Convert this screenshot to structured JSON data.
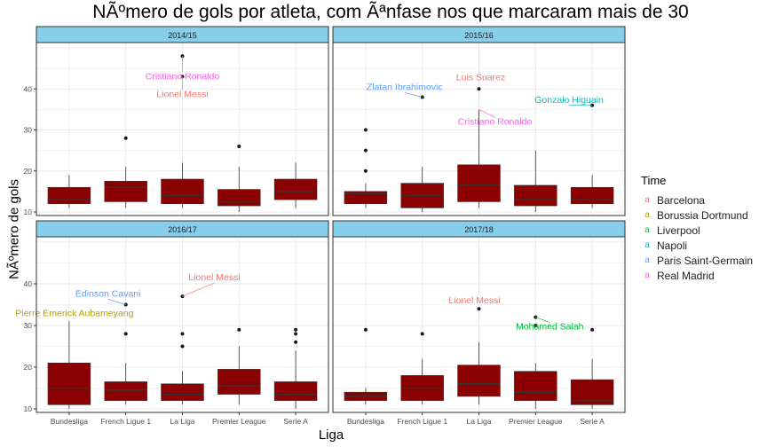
{
  "chart_data": {
    "type": "boxplot",
    "title": "NÃºmero de gols por atleta, com Ãªnfase nos que marcaram mais de 30",
    "xlabel": "Liga",
    "ylabel": "NÃºmero de gols",
    "categories": [
      "Bundesliga",
      "French Ligue 1",
      "La Liga",
      "Premier League",
      "Serie A"
    ],
    "ylim": [
      10,
      50
    ],
    "yticks": [
      10,
      20,
      30,
      40
    ],
    "grid": true,
    "box_color": "#8b0000",
    "strip_color": "#87ceeb",
    "legend": {
      "title": "Time",
      "position": "right",
      "entries": [
        {
          "name": "Barcelona",
          "color": "#f8766d"
        },
        {
          "name": "Borussia Dortmund",
          "color": "#b79f00"
        },
        {
          "name": "Liverpool",
          "color": "#00ba38"
        },
        {
          "name": "Napoli",
          "color": "#00bfc4"
        },
        {
          "name": "Paris Saint-Germain",
          "color": "#619cff"
        },
        {
          "name": "Real Madrid",
          "color": "#f564e3"
        }
      ]
    },
    "panels": [
      {
        "season": "2014/15",
        "boxes": [
          {
            "category": "Bundesliga",
            "q1": 12,
            "median": 13,
            "q3": 16,
            "whisker_low": 11,
            "whisker_high": 19
          },
          {
            "category": "French Ligue 1",
            "q1": 12.5,
            "median": 16,
            "q3": 17.5,
            "whisker_low": 11,
            "whisker_high": 21
          },
          {
            "category": "La Liga",
            "q1": 12,
            "median": 14,
            "q3": 18,
            "whisker_low": 11,
            "whisker_high": 22
          },
          {
            "category": "Premier League",
            "q1": 11.5,
            "median": 12.5,
            "q3": 15.5,
            "whisker_low": 10,
            "whisker_high": 21
          },
          {
            "category": "Serie A",
            "q1": 13,
            "median": 15,
            "q3": 18,
            "whisker_low": 11,
            "whisker_high": 22
          }
        ],
        "outliers": [
          {
            "category": "French Ligue 1",
            "value": 28
          },
          {
            "category": "La Liga",
            "value": 48
          },
          {
            "category": "La Liga",
            "value": 43
          },
          {
            "category": "Premier League",
            "value": 26
          }
        ],
        "annotations": [
          {
            "label": "Cristiano Ronaldo",
            "team": "Real Madrid",
            "category": "La Liga",
            "value": 48
          },
          {
            "label": "Lionel Messi",
            "team": "Barcelona",
            "category": "La Liga",
            "value": 43
          }
        ]
      },
      {
        "season": "2015/16",
        "boxes": [
          {
            "category": "Bundesliga",
            "q1": 12,
            "median": 14.5,
            "q3": 15,
            "whisker_low": 11,
            "whisker_high": 17
          },
          {
            "category": "French Ligue 1",
            "q1": 11,
            "median": 14,
            "q3": 17,
            "whisker_low": 10,
            "whisker_high": 21
          },
          {
            "category": "La Liga",
            "q1": 12.5,
            "median": 16.5,
            "q3": 21.5,
            "whisker_low": 11,
            "whisker_high": 35
          },
          {
            "category": "Premier League",
            "q1": 11.5,
            "median": 13,
            "q3": 16.5,
            "whisker_low": 10,
            "whisker_high": 25
          },
          {
            "category": "Serie A",
            "q1": 12,
            "median": 13,
            "q3": 16,
            "whisker_low": 11,
            "whisker_high": 19
          }
        ],
        "outliers": [
          {
            "category": "Bundesliga",
            "value": 30
          },
          {
            "category": "Bundesliga",
            "value": 25
          },
          {
            "category": "Bundesliga",
            "value": 20
          },
          {
            "category": "French Ligue 1",
            "value": 38
          },
          {
            "category": "La Liga",
            "value": 40
          },
          {
            "category": "Serie A",
            "value": 36
          }
        ],
        "annotations": [
          {
            "label": "Zlatan Ibrahimovic",
            "team": "Paris Saint-Germain",
            "category": "French Ligue 1",
            "value": 38
          },
          {
            "label": "Luis Suarez",
            "team": "Barcelona",
            "category": "La Liga",
            "value": 40
          },
          {
            "label": "Cristiano Ronaldo",
            "team": "Real Madrid",
            "category": "La Liga",
            "value": 35
          },
          {
            "label": "Gonzalo Higuain",
            "team": "Napoli",
            "category": "Serie A",
            "value": 36
          }
        ]
      },
      {
        "season": "2016/17",
        "boxes": [
          {
            "category": "Bundesliga",
            "q1": 11,
            "median": 15,
            "q3": 21,
            "whisker_low": 10,
            "whisker_high": 31
          },
          {
            "category": "French Ligue 1",
            "q1": 12,
            "median": 14.5,
            "q3": 16.5,
            "whisker_low": 11,
            "whisker_high": 21
          },
          {
            "category": "La Liga",
            "q1": 12,
            "median": 13.5,
            "q3": 16,
            "whisker_low": 11,
            "whisker_high": 19
          },
          {
            "category": "Premier League",
            "q1": 13.5,
            "median": 15.5,
            "q3": 19.5,
            "whisker_low": 11,
            "whisker_high": 25
          },
          {
            "category": "Serie A",
            "q1": 12,
            "median": 13.5,
            "q3": 16.5,
            "whisker_low": 10,
            "whisker_high": 24
          }
        ],
        "outliers": [
          {
            "category": "French Ligue 1",
            "value": 35
          },
          {
            "category": "French Ligue 1",
            "value": 28
          },
          {
            "category": "La Liga",
            "value": 37
          },
          {
            "category": "La Liga",
            "value": 28
          },
          {
            "category": "La Liga",
            "value": 25
          },
          {
            "category": "Premier League",
            "value": 29
          },
          {
            "category": "Serie A",
            "value": 29
          },
          {
            "category": "Serie A",
            "value": 28
          },
          {
            "category": "Serie A",
            "value": 26
          }
        ],
        "annotations": [
          {
            "label": "Edinson Cavani",
            "team": "Paris Saint-Germain",
            "category": "French Ligue 1",
            "value": 35
          },
          {
            "label": "Lionel Messi",
            "team": "Barcelona",
            "category": "La Liga",
            "value": 37
          },
          {
            "label": "Pierre Emerick Aubameyang",
            "team": "Borussia Dortmund",
            "category": "Bundesliga",
            "value": 31
          }
        ]
      },
      {
        "season": "2017/18",
        "boxes": [
          {
            "category": "Bundesliga",
            "q1": 12,
            "median": 13,
            "q3": 14,
            "whisker_low": 11,
            "whisker_high": 15
          },
          {
            "category": "French Ligue 1",
            "q1": 12,
            "median": 15,
            "q3": 18,
            "whisker_low": 11,
            "whisker_high": 22
          },
          {
            "category": "La Liga",
            "q1": 13,
            "median": 16,
            "q3": 20.5,
            "whisker_low": 11,
            "whisker_high": 26
          },
          {
            "category": "Premier League",
            "q1": 12,
            "median": 14,
            "q3": 19,
            "whisker_low": 10,
            "whisker_high": 21
          },
          {
            "category": "Serie A",
            "q1": 11,
            "median": 12,
            "q3": 17,
            "whisker_low": 10,
            "whisker_high": 22
          }
        ],
        "outliers": [
          {
            "category": "Bundesliga",
            "value": 29
          },
          {
            "category": "French Ligue 1",
            "value": 28
          },
          {
            "category": "La Liga",
            "value": 34
          },
          {
            "category": "Premier League",
            "value": 32
          },
          {
            "category": "Premier League",
            "value": 30
          },
          {
            "category": "Serie A",
            "value": 29
          }
        ],
        "annotations": [
          {
            "label": "Lionel Messi",
            "team": "Barcelona",
            "category": "La Liga",
            "value": 34
          },
          {
            "label": "Mohamed Salah",
            "team": "Liverpool",
            "category": "Premier League",
            "value": 32
          }
        ]
      }
    ]
  }
}
